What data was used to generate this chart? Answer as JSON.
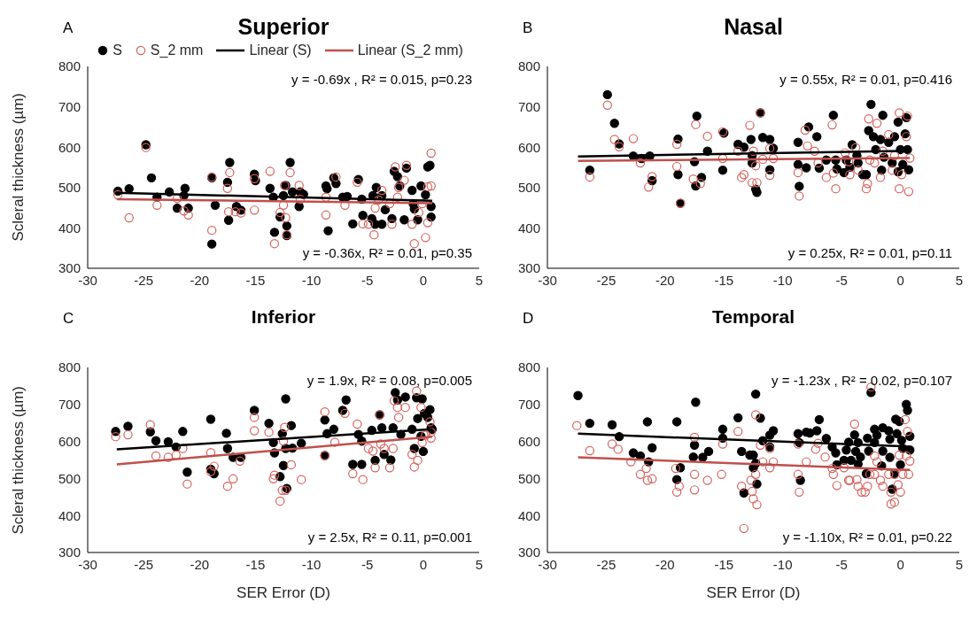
{
  "chart_data": [
    {
      "type": "scatter",
      "title": "Superior",
      "ylabel": "Scleral thickness (µm)",
      "xlim": [
        -30,
        5
      ],
      "xticks": [
        -30,
        -25,
        -20,
        -15,
        -10,
        -5,
        0,
        5
      ],
      "ylim": [
        300,
        800
      ],
      "yticks": [
        300,
        400,
        500,
        600,
        700,
        800
      ],
      "marker": "circle",
      "legend": "top",
      "annotations": [
        "A",
        "y = -0.69x , R² = 0.015, p=0.23",
        "y = -0.36x, R² = 0.01, p=0.35"
      ],
      "series": [
        {
          "name": "S",
          "color": "#000000",
          "x": [
            -24.8,
            -27.3,
            -26.3,
            -24.3,
            -23.8,
            -22.7,
            -22.0,
            -21.4,
            -21.3,
            -21.0,
            -18.9,
            -18.6,
            -18.9,
            -17.5,
            -17.3,
            -17.4,
            -16.7,
            -16.3,
            -15.1,
            -15.0,
            -13.7,
            -13.4,
            -13.3,
            -12.8,
            -12.5,
            -12.3,
            -12.2,
            -12.2,
            -11.9,
            -11.7,
            -11.1,
            -11.0,
            -10.7,
            -8.7,
            -8.6,
            -8.5,
            -8.0,
            -7.8,
            -7.2,
            -6.8,
            -5.8,
            -5.5,
            -5.4,
            -6.3,
            -4.6,
            -4.5,
            -4.2,
            -4.3,
            -3.7,
            -3.7,
            -3.4,
            -2.8,
            -2.6,
            -2.3,
            -2.1,
            -1.5,
            -1.7,
            -1.0,
            -0.9,
            -0.8,
            -0.5,
            -0.2,
            0.2,
            0.4,
            0.6,
            0.7,
            0.7
          ],
          "values": [
            606,
            491,
            497,
            524,
            476,
            489,
            449,
            480,
            498,
            449,
            524,
            456,
            360,
            513,
            562,
            419,
            453,
            444,
            533,
            517,
            498,
            476,
            389,
            427,
            480,
            505,
            405,
            381,
            562,
            489,
            453,
            489,
            483,
            504,
            497,
            393,
            524,
            510,
            476,
            478,
            520,
            471,
            431,
            410,
            423,
            480,
            500,
            409,
            409,
            480,
            445,
            423,
            540,
            527,
            504,
            548,
            420,
            493,
            460,
            447,
            420,
            504,
            482,
            551,
            555,
            427,
            453
          ]
        },
        {
          "name": "S_2 mm",
          "color": "#d4615c",
          "x": [
            -24.8,
            -27.3,
            -26.3,
            -23.8,
            -22.0,
            -21.4,
            -21.0,
            -18.9,
            -18.9,
            -17.5,
            -17.3,
            -17.4,
            -16.8,
            -16.3,
            -15.1,
            -15.1,
            -13.7,
            -13.3,
            -12.8,
            -12.5,
            -12.3,
            -12.2,
            -11.9,
            -12.4,
            -11.1,
            -11.0,
            -8.7,
            -8.7,
            -7.8,
            -7.0,
            -5.9,
            -5.4,
            -4.9,
            -4.4,
            -4.3,
            -4.0,
            -3.7,
            -3.0,
            -2.8,
            -2.5,
            -2.3,
            -2.2,
            -1.5,
            -1.7,
            -1.0,
            -0.8,
            -0.4,
            0.2,
            0.4,
            0.7,
            0.4,
            0.7,
            -0.1
          ],
          "values": [
            599,
            482,
            425,
            456,
            473,
            442,
            432,
            394,
            526,
            498,
            537,
            440,
            440,
            437,
            444,
            522,
            540,
            361,
            438,
            456,
            425,
            383,
            537,
            505,
            505,
            471,
            432,
            476,
            526,
            456,
            513,
            410,
            409,
            383,
            449,
            469,
            493,
            460,
            409,
            551,
            476,
            500,
            555,
            518,
            409,
            361,
            438,
            376,
            413,
            585,
            502,
            504,
            460
          ]
        },
        {
          "name": "Linear (S)",
          "type": "line",
          "marker": "none",
          "color": "#000000",
          "x": [
            -27.4,
            0.8
          ],
          "values": [
            487,
            467
          ]
        },
        {
          "name": "Linear (S_2 mm)",
          "type": "line",
          "marker": "none",
          "color": "#c0504d",
          "x": [
            -27.4,
            0.8
          ],
          "values": [
            471,
            461
          ]
        }
      ]
    },
    {
      "type": "scatter",
      "title": "Nasal",
      "xlim": [
        -30,
        5
      ],
      "xticks": [
        -30,
        -25,
        -20,
        -15,
        -10,
        -5,
        0,
        5
      ],
      "ylim": [
        300,
        800
      ],
      "yticks": [
        300,
        400,
        500,
        600,
        700,
        800
      ],
      "marker": "circle",
      "annotations": [
        "B",
        "y = 0.55x, R² = 0.01, p=0.416",
        "y = 0.25x, R² = 0.01, p=0.11"
      ],
      "series": [
        {
          "color": "#000000",
          "x": [
            -24.9,
            -24.3,
            -23.9,
            -26.4,
            -22.7,
            -22.0,
            -21.3,
            -21.1,
            -18.9,
            -18.9,
            -18.7,
            -17.3,
            -17.5,
            -17.4,
            -16.9,
            -16.4,
            -15.0,
            -15.1,
            -13.8,
            -13.3,
            -12.7,
            -12.6,
            -12.6,
            -12.3,
            -12.2,
            -11.9,
            -11.7,
            -11.1,
            -10.8,
            -11.1,
            -8.7,
            -8.7,
            -8.6,
            -8.0,
            -7.8,
            -7.1,
            -6.9,
            -5.7,
            -6.3,
            -5.5,
            -5.4,
            -4.8,
            -4.6,
            -4.3,
            -4.1,
            -3.7,
            -3.6,
            -3.2,
            -2.9,
            -2.7,
            -2.5,
            -2.3,
            -2.1,
            -1.7,
            -1.6,
            -1.5,
            -1.4,
            -1.0,
            -0.7,
            -0.5,
            -0.2,
            -0.2,
            0.0,
            0.2,
            0.4,
            0.5,
            0.6,
            0.7
          ],
          "values": [
            730,
            659,
            608,
            543,
            578,
            572,
            578,
            517,
            620,
            532,
            461,
            677,
            564,
            504,
            525,
            590,
            635,
            543,
            607,
            600,
            619,
            579,
            561,
            496,
            488,
            685,
            624,
            619,
            597,
            544,
            612,
            557,
            503,
            549,
            650,
            626,
            548,
            679,
            568,
            568,
            546,
            537,
            568,
            550,
            606,
            579,
            561,
            532,
            532,
            641,
            706,
            626,
            594,
            619,
            543,
            679,
            575,
            612,
            561,
            626,
            662,
            539,
            594,
            557,
            633,
            673,
            594,
            544
          ]
        },
        {
          "color": "#d4615c",
          "x": [
            -24.9,
            -24.3,
            -23.9,
            -26.4,
            -22.7,
            -22.1,
            -21.4,
            -21.1,
            -19.0,
            -19.0,
            -18.7,
            -17.4,
            -17.6,
            -17.0,
            -16.4,
            -15.1,
            -15.1,
            -13.8,
            -13.5,
            -13.3,
            -12.8,
            -12.5,
            -12.6,
            -12.2,
            -11.9,
            -11.7,
            -12.3,
            -11.1,
            -11.1,
            -10.8,
            -8.7,
            -8.6,
            -8.1,
            -7.9,
            -7.3,
            -7.0,
            -5.8,
            -6.3,
            -5.7,
            -5.5,
            -4.7,
            -4.4,
            -4.3,
            -3.8,
            -3.6,
            -2.9,
            -2.8,
            -2.7,
            -2.6,
            -2.2,
            -2.0,
            -1.7,
            -1.5,
            -1.0,
            -0.7,
            -0.5,
            -0.1,
            -0.1,
            0.1,
            0.5,
            0.6,
            0.7,
            0.8
          ],
          "values": [
            704,
            619,
            601,
            526,
            621,
            561,
            501,
            527,
            607,
            552,
            461,
            656,
            521,
            510,
            627,
            638,
            572,
            590,
            525,
            532,
            654,
            590,
            512,
            512,
            685,
            570,
            554,
            597,
            530,
            572,
            537,
            479,
            642,
            603,
            590,
            561,
            655,
            525,
            536,
            497,
            586,
            564,
            532,
            599,
            543,
            497,
            510,
            670,
            568,
            561,
            659,
            525,
            590,
            631,
            543,
            579,
            685,
            497,
            532,
            626,
            677,
            490,
            573
          ]
        },
        {
          "type": "line",
          "marker": "none",
          "color": "#000000",
          "x": [
            -27.4,
            0.8
          ],
          "values": [
            577,
            591
          ]
        },
        {
          "type": "line",
          "marker": "none",
          "color": "#c0504d",
          "x": [
            -27.4,
            0.8
          ],
          "values": [
            566,
            573
          ]
        }
      ]
    },
    {
      "type": "scatter",
      "title": "Inferior",
      "xlabel": "SER Error (D)",
      "ylabel": "Scleral thickness (µm)",
      "xlim": [
        -30,
        5
      ],
      "xticks": [
        -30,
        -25,
        -20,
        -15,
        -10,
        -5,
        0,
        5
      ],
      "ylim": [
        300,
        800
      ],
      "yticks": [
        300,
        400,
        500,
        600,
        700,
        800
      ],
      "marker": "circle",
      "annotations": [
        "C",
        "y = 1.9x, R² = 0.08, p=0.005",
        "y = 2.5x, R² = 0.11, p=0.001"
      ],
      "series": [
        {
          "color": "#000000",
          "x": [
            -27.5,
            -26.4,
            -24.4,
            -23.9,
            -22.8,
            -22.1,
            -21.5,
            -21.1,
            -19.0,
            -19.0,
            -18.7,
            -17.6,
            -17.5,
            -17.0,
            -16.3,
            -15.1,
            -13.8,
            -13.4,
            -13.3,
            -12.6,
            -12.3,
            -12.5,
            -12.8,
            -12.2,
            -11.8,
            -12.3,
            -11.7,
            -10.9,
            -8.8,
            -8.6,
            -8.8,
            -8.0,
            -7.2,
            -6.9,
            -6.3,
            -5.8,
            -5.5,
            -5.5,
            -4.6,
            -4.3,
            -3.9,
            -3.7,
            -3.5,
            -2.9,
            -2.7,
            -2.5,
            -2.3,
            -2.0,
            -1.6,
            -1.0,
            -0.8,
            -0.6,
            -0.5,
            -0.2,
            -0.1,
            0.0,
            0.1,
            0.4,
            0.6,
            0.7,
            0.8
          ],
          "values": [
            627,
            641,
            626,
            602,
            599,
            585,
            627,
            517,
            660,
            525,
            513,
            622,
            581,
            557,
            557,
            684,
            649,
            597,
            569,
            621,
            715,
            535,
            505,
            473,
            643,
            581,
            582,
            595,
            658,
            621,
            562,
            633,
            684,
            712,
            538,
            619,
            601,
            538,
            630,
            549,
            672,
            637,
            565,
            550,
            637,
            732,
            712,
            619,
            720,
            633,
            581,
            718,
            662,
            614,
            715,
            573,
            676,
            665,
            686,
            637,
            633
          ]
        },
        {
          "color": "#d4615c",
          "x": [
            -27.5,
            -26.4,
            -24.4,
            -23.9,
            -22.8,
            -22.1,
            -21.5,
            -21.1,
            -19.0,
            -19.0,
            -18.7,
            -17.5,
            -17.0,
            -16.4,
            -15.1,
            -15.1,
            -13.8,
            -13.4,
            -13.3,
            -12.8,
            -12.6,
            -12.3,
            -12.5,
            -12.4,
            -11.8,
            -10.9,
            -8.8,
            -8.8,
            -7.9,
            -7.0,
            -5.9,
            -6.3,
            -5.4,
            -4.9,
            -4.5,
            -4.3,
            -3.9,
            -3.8,
            -3.5,
            -3.0,
            -2.7,
            -2.6,
            -2.3,
            -2.2,
            -1.6,
            -1.0,
            -0.8,
            -0.6,
            -0.5,
            -0.2,
            -0.1,
            0.2,
            0.6,
            0.7,
            0.7
          ],
          "values": [
            613,
            618,
            645,
            561,
            557,
            563,
            581,
            485,
            570,
            519,
            533,
            479,
            499,
            547,
            665,
            629,
            625,
            499,
            509,
            439,
            468,
            468,
            601,
            638,
            537,
            497,
            680,
            562,
            598,
            676,
            647,
            513,
            497,
            581,
            574,
            529,
            672,
            593,
            581,
            529,
            581,
            710,
            692,
            665,
            692,
            565,
            531,
            736,
            549,
            692,
            597,
            617,
            653,
            609,
            625
          ]
        },
        {
          "type": "line",
          "marker": "none",
          "color": "#000000",
          "x": [
            -27.4,
            0.8
          ],
          "values": [
            579,
            633
          ]
        },
        {
          "type": "line",
          "marker": "none",
          "color": "#c0504d",
          "x": [
            -27.4,
            0.8
          ],
          "values": [
            538,
            613
          ]
        }
      ]
    },
    {
      "type": "scatter",
      "title": "Temporal",
      "xlabel": "SER Error (D)",
      "xlim": [
        -30,
        5
      ],
      "xticks": [
        -30,
        -25,
        -20,
        -15,
        -10,
        -5,
        0,
        5
      ],
      "ylim": [
        300,
        800
      ],
      "yticks": [
        300,
        400,
        500,
        600,
        700,
        800
      ],
      "marker": "circle",
      "annotations": [
        "D",
        "y = -1.23x , R² = 0.02, p=0.107",
        "y = -1.10x, R² = 0.01, p=0.22"
      ],
      "series": [
        {
          "color": "#000000",
          "x": [
            -27.4,
            -26.4,
            -24.5,
            -23.9,
            -22.7,
            -22.1,
            -21.5,
            -21.4,
            -21.1,
            -19.0,
            -19.0,
            -18.7,
            -17.4,
            -17.5,
            -17.6,
            -16.8,
            -16.3,
            -15.1,
            -15.1,
            -13.8,
            -13.5,
            -13.3,
            -12.8,
            -12.5,
            -12.5,
            -12.3,
            -12.3,
            -12.2,
            -11.9,
            -11.7,
            -11.1,
            -11.1,
            -10.8,
            -8.7,
            -8.6,
            -8.5,
            -8.0,
            -7.7,
            -7.1,
            -6.9,
            -6.3,
            -5.8,
            -5.5,
            -5.4,
            -4.8,
            -4.6,
            -4.4,
            -4.2,
            -3.9,
            -3.8,
            -3.6,
            -3.6,
            -3.4,
            -2.9,
            -2.8,
            -2.7,
            -2.5,
            -2.2,
            -2.2,
            -2.0,
            -1.5,
            -1.5,
            -1.6,
            -1.0,
            -0.9,
            -0.9,
            -0.7,
            -0.5,
            -0.4,
            -0.3,
            -0.1,
            0.0,
            0.1,
            0.2,
            0.5,
            0.6,
            0.8,
            0.8
          ],
          "values": [
            724,
            649,
            645,
            613,
            569,
            561,
            653,
            545,
            583,
            653,
            497,
            529,
            706,
            590,
            558,
            557,
            573,
            633,
            609,
            664,
            573,
            461,
            563,
            563,
            529,
            728,
            541,
            485,
            663,
            602,
            585,
            617,
            629,
            621,
            597,
            495,
            625,
            623,
            629,
            659,
            608,
            585,
            569,
            537,
            549,
            577,
            598,
            549,
            618,
            573,
            597,
            539,
            558,
            513,
            609,
            574,
            732,
            633,
            597,
            617,
            574,
            637,
            534,
            629,
            557,
            606,
            471,
            513,
            660,
            621,
            654,
            537,
            603,
            581,
            700,
            684,
            614,
            577
          ]
        },
        {
          "color": "#d4615c",
          "x": [
            -27.5,
            -26.4,
            -24.5,
            -24.0,
            -22.9,
            -22.1,
            -21.6,
            -21.5,
            -21.1,
            -19.1,
            -19.0,
            -18.8,
            -17.5,
            -17.5,
            -17.5,
            -16.4,
            -15.2,
            -15.1,
            -13.8,
            -13.5,
            -13.3,
            -12.7,
            -12.6,
            -12.5,
            -12.3,
            -12.3,
            -12.2,
            -11.9,
            -11.7,
            -11.1,
            -11.1,
            -10.8,
            -8.7,
            -8.7,
            -8.6,
            -8.0,
            -7.2,
            -7.0,
            -6.4,
            -5.7,
            -5.4,
            -5.8,
            -4.8,
            -4.4,
            -4.3,
            -3.9,
            -3.7,
            -3.6,
            -3.3,
            -3.0,
            -2.8,
            -2.5,
            -2.6,
            -2.2,
            -2.2,
            -2.0,
            -1.7,
            -1.5,
            -1.0,
            -0.8,
            -0.8,
            -0.5,
            -0.5,
            -0.2,
            -0.1,
            0.0,
            0.2,
            0.4,
            0.5,
            0.6,
            0.7,
            0.8
          ],
          "values": [
            643,
            575,
            593,
            579,
            545,
            511,
            527,
            495,
            499,
            527,
            463,
            479,
            511,
            469,
            611,
            495,
            511,
            593,
            627,
            479,
            365,
            495,
            465,
            445,
            672,
            511,
            429,
            590,
            545,
            581,
            529,
            545,
            593,
            511,
            463,
            545,
            579,
            595,
            558,
            511,
            481,
            527,
            529,
            495,
            495,
            647,
            497,
            479,
            463,
            463,
            479,
            747,
            511,
            511,
            561,
            545,
            495,
            479,
            511,
            463,
            431,
            436,
            511,
            483,
            563,
            463,
            511,
            659,
            561,
            627,
            511,
            547
          ]
        },
        {
          "type": "line",
          "marker": "none",
          "color": "#000000",
          "x": [
            -27.4,
            0.8
          ],
          "values": [
            621,
            586
          ]
        },
        {
          "type": "line",
          "marker": "none",
          "color": "#c0504d",
          "x": [
            -27.4,
            0.8
          ],
          "values": [
            557,
            523
          ]
        }
      ]
    }
  ]
}
